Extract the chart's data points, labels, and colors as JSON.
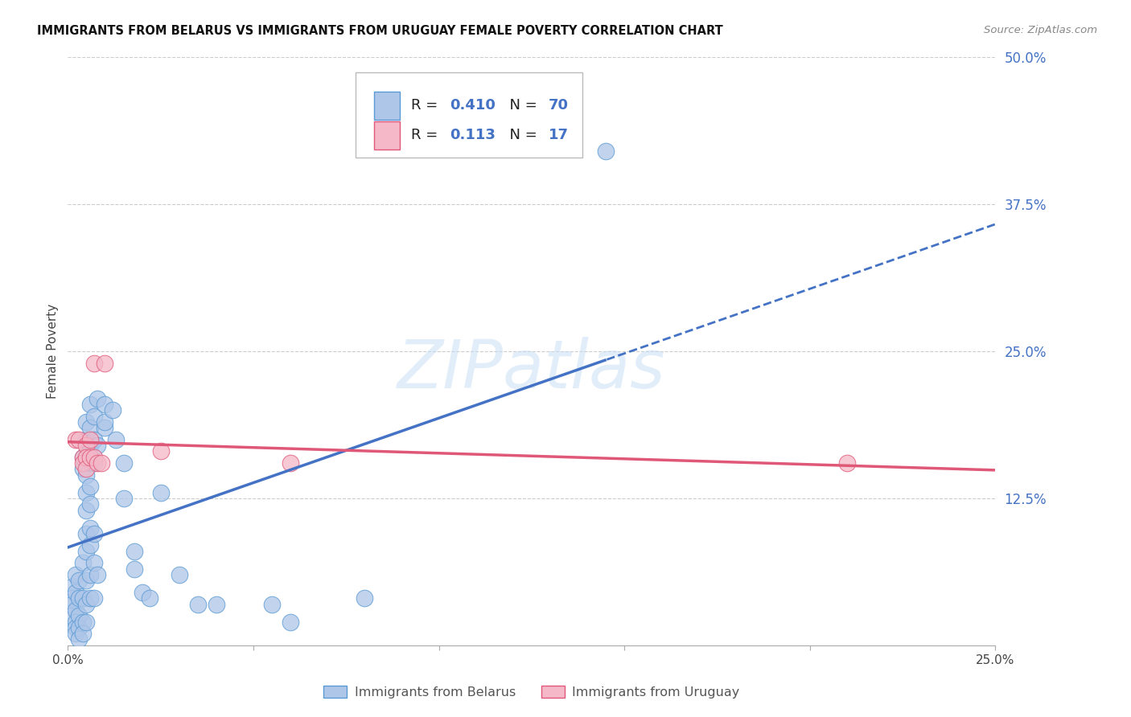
{
  "title": "IMMIGRANTS FROM BELARUS VS IMMIGRANTS FROM URUGUAY FEMALE POVERTY CORRELATION CHART",
  "source": "Source: ZipAtlas.com",
  "ylabel": "Female Poverty",
  "x_min": 0.0,
  "x_max": 0.25,
  "y_min": 0.0,
  "y_max": 0.5,
  "x_ticks": [
    0.0,
    0.05,
    0.1,
    0.15,
    0.2,
    0.25
  ],
  "x_tick_labels": [
    "0.0%",
    "",
    "",
    "",
    "",
    "25.0%"
  ],
  "y_ticks": [
    0.0,
    0.125,
    0.25,
    0.375,
    0.5
  ],
  "y_tick_labels": [
    "",
    "12.5%",
    "25.0%",
    "37.5%",
    "50.0%"
  ],
  "belarus_R": 0.41,
  "belarus_N": 70,
  "uruguay_R": 0.113,
  "uruguay_N": 17,
  "belarus_color": "#aec6e8",
  "belarus_edge_color": "#5b9bd5",
  "uruguay_color": "#f4b8c8",
  "uruguay_edge_color": "#e05878",
  "watermark": "ZIPatlas",
  "belarus_line_color": "#4472c4",
  "uruguay_line_color": "#e05878",
  "belarus_scatter": [
    [
      0.001,
      0.05
    ],
    [
      0.001,
      0.04
    ],
    [
      0.001,
      0.035
    ],
    [
      0.001,
      0.025
    ],
    [
      0.002,
      0.06
    ],
    [
      0.002,
      0.045
    ],
    [
      0.002,
      0.03
    ],
    [
      0.002,
      0.02
    ],
    [
      0.002,
      0.015
    ],
    [
      0.002,
      0.01
    ],
    [
      0.003,
      0.055
    ],
    [
      0.003,
      0.04
    ],
    [
      0.003,
      0.025
    ],
    [
      0.003,
      0.015
    ],
    [
      0.003,
      0.005
    ],
    [
      0.004,
      0.16
    ],
    [
      0.004,
      0.15
    ],
    [
      0.004,
      0.07
    ],
    [
      0.004,
      0.04
    ],
    [
      0.004,
      0.02
    ],
    [
      0.004,
      0.01
    ],
    [
      0.005,
      0.175
    ],
    [
      0.005,
      0.16
    ],
    [
      0.005,
      0.145
    ],
    [
      0.005,
      0.19
    ],
    [
      0.005,
      0.13
    ],
    [
      0.005,
      0.115
    ],
    [
      0.005,
      0.095
    ],
    [
      0.005,
      0.08
    ],
    [
      0.005,
      0.055
    ],
    [
      0.005,
      0.035
    ],
    [
      0.005,
      0.02
    ],
    [
      0.006,
      0.185
    ],
    [
      0.006,
      0.17
    ],
    [
      0.006,
      0.155
    ],
    [
      0.006,
      0.205
    ],
    [
      0.006,
      0.135
    ],
    [
      0.006,
      0.12
    ],
    [
      0.006,
      0.1
    ],
    [
      0.006,
      0.085
    ],
    [
      0.006,
      0.06
    ],
    [
      0.006,
      0.04
    ],
    [
      0.007,
      0.175
    ],
    [
      0.007,
      0.155
    ],
    [
      0.007,
      0.195
    ],
    [
      0.007,
      0.095
    ],
    [
      0.007,
      0.07
    ],
    [
      0.007,
      0.04
    ],
    [
      0.008,
      0.17
    ],
    [
      0.008,
      0.21
    ],
    [
      0.008,
      0.06
    ],
    [
      0.01,
      0.185
    ],
    [
      0.01,
      0.205
    ],
    [
      0.01,
      0.19
    ],
    [
      0.012,
      0.2
    ],
    [
      0.013,
      0.175
    ],
    [
      0.015,
      0.155
    ],
    [
      0.015,
      0.125
    ],
    [
      0.018,
      0.08
    ],
    [
      0.018,
      0.065
    ],
    [
      0.02,
      0.045
    ],
    [
      0.022,
      0.04
    ],
    [
      0.025,
      0.13
    ],
    [
      0.03,
      0.06
    ],
    [
      0.035,
      0.035
    ],
    [
      0.04,
      0.035
    ],
    [
      0.055,
      0.035
    ],
    [
      0.06,
      0.02
    ],
    [
      0.08,
      0.04
    ],
    [
      0.145,
      0.42
    ]
  ],
  "uruguay_scatter": [
    [
      0.002,
      0.175
    ],
    [
      0.003,
      0.175
    ],
    [
      0.004,
      0.16
    ],
    [
      0.004,
      0.155
    ],
    [
      0.005,
      0.17
    ],
    [
      0.005,
      0.16
    ],
    [
      0.005,
      0.15
    ],
    [
      0.006,
      0.175
    ],
    [
      0.006,
      0.16
    ],
    [
      0.007,
      0.24
    ],
    [
      0.007,
      0.16
    ],
    [
      0.008,
      0.155
    ],
    [
      0.009,
      0.155
    ],
    [
      0.01,
      0.24
    ],
    [
      0.025,
      0.165
    ],
    [
      0.06,
      0.155
    ],
    [
      0.21,
      0.155
    ]
  ],
  "figsize": [
    14.06,
    8.92
  ],
  "dpi": 100
}
